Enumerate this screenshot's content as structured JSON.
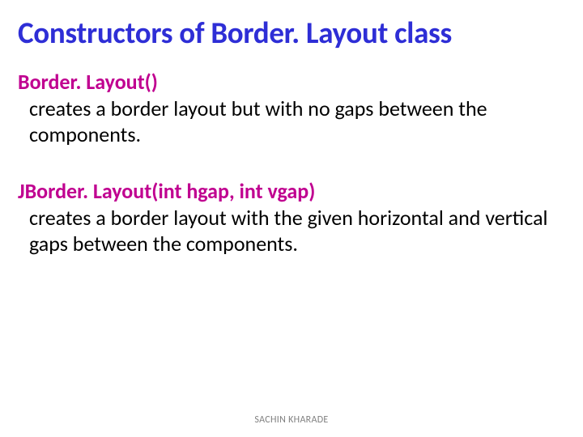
{
  "slide": {
    "title": "Constructors of Border. Layout class",
    "title_color": "#2e2ed6",
    "title_fontsize": 37,
    "background_color": "#ffffff",
    "constructors": [
      {
        "signature": "Border. Layout()",
        "description": "creates a border layout but with no gaps between the components."
      },
      {
        "signature": "JBorder. Layout(int hgap, int vgap)",
        "description": "creates a border layout with the given horizontal and vertical gaps between the components."
      }
    ],
    "signature_color": "#c00090",
    "signature_fontsize": 26,
    "body_color": "#000000",
    "body_fontsize": 26,
    "footer": "SACHIN KHARADE",
    "footer_color": "#808080",
    "footer_fontsize": 12
  }
}
